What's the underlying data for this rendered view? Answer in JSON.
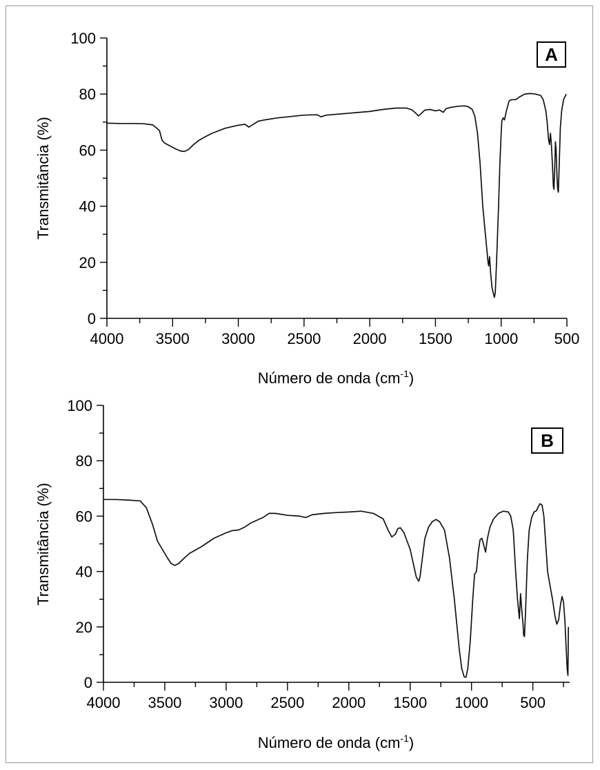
{
  "chart_data": [
    {
      "type": "line",
      "panel_label": "A",
      "xlabel": "Número de onda (cm",
      "xlabel_sup": "-1",
      "xlabel_end": ")",
      "ylabel": "Transmitância (%)",
      "xlim": [
        4000,
        500
      ],
      "ylim": [
        0,
        100
      ],
      "x_major_ticks": [
        4000,
        3500,
        3000,
        2500,
        2000,
        1500,
        1000,
        500
      ],
      "y_major_ticks": [
        0,
        20,
        40,
        60,
        80,
        100
      ],
      "grid": false,
      "series": [
        {
          "points": [
            [
              4000,
              69.6
            ],
            [
              3900,
              69.5
            ],
            [
              3800,
              69.5
            ],
            [
              3720,
              69.4
            ],
            [
              3650,
              69.0
            ],
            [
              3600,
              67.0
            ],
            [
              3580,
              63.5
            ],
            [
              3560,
              62.5
            ],
            [
              3520,
              61.5
            ],
            [
              3480,
              60.5
            ],
            [
              3440,
              59.7
            ],
            [
              3410,
              59.5
            ],
            [
              3380,
              60.2
            ],
            [
              3340,
              62.0
            ],
            [
              3300,
              63.5
            ],
            [
              3250,
              64.8
            ],
            [
              3200,
              66.0
            ],
            [
              3100,
              67.8
            ],
            [
              3000,
              68.9
            ],
            [
              2950,
              69.2
            ],
            [
              2920,
              68.2
            ],
            [
              2900,
              68.8
            ],
            [
              2850,
              70.3
            ],
            [
              2800,
              70.8
            ],
            [
              2700,
              71.5
            ],
            [
              2600,
              72.0
            ],
            [
              2500,
              72.5
            ],
            [
              2400,
              72.6
            ],
            [
              2370,
              71.9
            ],
            [
              2330,
              72.5
            ],
            [
              2200,
              73.0
            ],
            [
              2100,
              73.4
            ],
            [
              2000,
              73.8
            ],
            [
              1900,
              74.5
            ],
            [
              1800,
              75.0
            ],
            [
              1720,
              75.0
            ],
            [
              1680,
              74.4
            ],
            [
              1650,
              73.2
            ],
            [
              1630,
              72.2
            ],
            [
              1610,
              73.0
            ],
            [
              1580,
              74.3
            ],
            [
              1540,
              74.5
            ],
            [
              1500,
              74.0
            ],
            [
              1470,
              74.3
            ],
            [
              1440,
              73.5
            ],
            [
              1420,
              74.8
            ],
            [
              1380,
              75.3
            ],
            [
              1320,
              75.7
            ],
            [
              1280,
              75.8
            ],
            [
              1250,
              75.5
            ],
            [
              1220,
              74.5
            ],
            [
              1200,
              72.0
            ],
            [
              1180,
              66.0
            ],
            [
              1160,
              55.0
            ],
            [
              1140,
              40.0
            ],
            [
              1120,
              30.0
            ],
            [
              1100,
              20.0
            ],
            [
              1095,
              18.7
            ],
            [
              1088,
              22.0
            ],
            [
              1080,
              16.0
            ],
            [
              1070,
              11.0
            ],
            [
              1060,
              9.0
            ],
            [
              1052,
              7.5
            ],
            [
              1045,
              9.0
            ],
            [
              1035,
              20.0
            ],
            [
              1020,
              40.0
            ],
            [
              1010,
              55.0
            ],
            [
              1000,
              66.0
            ],
            [
              995,
              70.5
            ],
            [
              985,
              71.5
            ],
            [
              975,
              70.8
            ],
            [
              960,
              74.0
            ],
            [
              940,
              77.5
            ],
            [
              920,
              78.0
            ],
            [
              890,
              78.0
            ],
            [
              860,
              79.0
            ],
            [
              820,
              80.0
            ],
            [
              780,
              80.2
            ],
            [
              740,
              80.0
            ],
            [
              700,
              79.5
            ],
            [
              680,
              78.0
            ],
            [
              660,
              74.0
            ],
            [
              650,
              70.0
            ],
            [
              640,
              64.0
            ],
            [
              632,
              62.0
            ],
            [
              625,
              66.0
            ],
            [
              618,
              62.0
            ],
            [
              610,
              55.0
            ],
            [
              603,
              47.0
            ],
            [
              598,
              46.0
            ],
            [
              592,
              55.0
            ],
            [
              587,
              63.0
            ],
            [
              582,
              60.0
            ],
            [
              575,
              50.0
            ],
            [
              570,
              46.0
            ],
            [
              565,
              45.0
            ],
            [
              558,
              55.0
            ],
            [
              550,
              68.0
            ],
            [
              540,
              74.0
            ],
            [
              525,
              78.0
            ],
            [
              510,
              79.5
            ],
            [
              505,
              80.0
            ]
          ]
        }
      ]
    },
    {
      "type": "line",
      "panel_label": "B",
      "xlabel": "Número de onda (cm",
      "xlabel_sup": "-1",
      "xlabel_end": ")",
      "ylabel": "Transmitância (%)",
      "xlim": [
        4000,
        200
      ],
      "ylim": [
        0,
        100
      ],
      "x_major_ticks": [
        4000,
        3500,
        3000,
        2500,
        2000,
        1500,
        1000,
        500
      ],
      "y_major_ticks": [
        0,
        20,
        40,
        60,
        80,
        100
      ],
      "grid": false,
      "series": [
        {
          "points": [
            [
              4000,
              66.0
            ],
            [
              3900,
              66.0
            ],
            [
              3800,
              65.8
            ],
            [
              3700,
              65.5
            ],
            [
              3650,
              63.0
            ],
            [
              3600,
              57.0
            ],
            [
              3560,
              51.0
            ],
            [
              3520,
              48.0
            ],
            [
              3480,
              45.0
            ],
            [
              3450,
              43.0
            ],
            [
              3420,
              42.2
            ],
            [
              3390,
              42.8
            ],
            [
              3350,
              44.5
            ],
            [
              3300,
              46.5
            ],
            [
              3200,
              49.0
            ],
            [
              3100,
              52.0
            ],
            [
              3000,
              54.0
            ],
            [
              2950,
              54.8
            ],
            [
              2900,
              55.0
            ],
            [
              2850,
              56.0
            ],
            [
              2800,
              57.5
            ],
            [
              2700,
              59.5
            ],
            [
              2650,
              61.0
            ],
            [
              2600,
              61.0
            ],
            [
              2500,
              60.3
            ],
            [
              2400,
              60.0
            ],
            [
              2350,
              59.5
            ],
            [
              2300,
              60.5
            ],
            [
              2200,
              61.0
            ],
            [
              2100,
              61.3
            ],
            [
              2000,
              61.5
            ],
            [
              1900,
              61.8
            ],
            [
              1800,
              61.0
            ],
            [
              1720,
              59.0
            ],
            [
              1680,
              55.0
            ],
            [
              1650,
              52.5
            ],
            [
              1620,
              53.5
            ],
            [
              1600,
              55.5
            ],
            [
              1580,
              55.8
            ],
            [
              1550,
              54.0
            ],
            [
              1500,
              48.0
            ],
            [
              1470,
              42.0
            ],
            [
              1450,
              38.0
            ],
            [
              1430,
              36.5
            ],
            [
              1420,
              38.0
            ],
            [
              1400,
              45.0
            ],
            [
              1380,
              52.0
            ],
            [
              1350,
              56.0
            ],
            [
              1320,
              58.0
            ],
            [
              1290,
              58.8
            ],
            [
              1260,
              58.0
            ],
            [
              1220,
              55.0
            ],
            [
              1180,
              45.0
            ],
            [
              1140,
              30.0
            ],
            [
              1100,
              12.0
            ],
            [
              1080,
              5.0
            ],
            [
              1060,
              2.0
            ],
            [
              1045,
              1.8
            ],
            [
              1030,
              5.0
            ],
            [
              1010,
              15.0
            ],
            [
              990,
              30.0
            ],
            [
              975,
              39.0
            ],
            [
              960,
              40.0
            ],
            [
              945,
              47.0
            ],
            [
              930,
              51.5
            ],
            [
              915,
              52.0
            ],
            [
              900,
              49.5
            ],
            [
              885,
              47.0
            ],
            [
              870,
              52.0
            ],
            [
              850,
              56.0
            ],
            [
              820,
              59.0
            ],
            [
              780,
              61.0
            ],
            [
              740,
              61.8
            ],
            [
              700,
              61.5
            ],
            [
              680,
              60.0
            ],
            [
              660,
              55.0
            ],
            [
              640,
              40.0
            ],
            [
              625,
              30.0
            ],
            [
              610,
              23.0
            ],
            [
              600,
              32.0
            ],
            [
              590,
              26.0
            ],
            [
              580,
              21.0
            ],
            [
              575,
              17.0
            ],
            [
              568,
              16.5
            ],
            [
              560,
              25.0
            ],
            [
              545,
              44.0
            ],
            [
              530,
              55.0
            ],
            [
              510,
              59.5
            ],
            [
              490,
              61.5
            ],
            [
              470,
              62.0
            ],
            [
              455,
              63.5
            ],
            [
              440,
              64.5
            ],
            [
              425,
              64.0
            ],
            [
              410,
              60.0
            ],
            [
              395,
              50.0
            ],
            [
              380,
              40.0
            ],
            [
              360,
              35.0
            ],
            [
              340,
              30.0
            ],
            [
              320,
              24.0
            ],
            [
              305,
              21.0
            ],
            [
              290,
              22.5
            ],
            [
              275,
              28.0
            ],
            [
              262,
              31.0
            ],
            [
              250,
              29.0
            ],
            [
              238,
              22.0
            ],
            [
              228,
              12.0
            ],
            [
              220,
              5.0
            ],
            [
              214,
              2.5
            ],
            [
              210,
              20.0
            ]
          ]
        }
      ]
    }
  ]
}
